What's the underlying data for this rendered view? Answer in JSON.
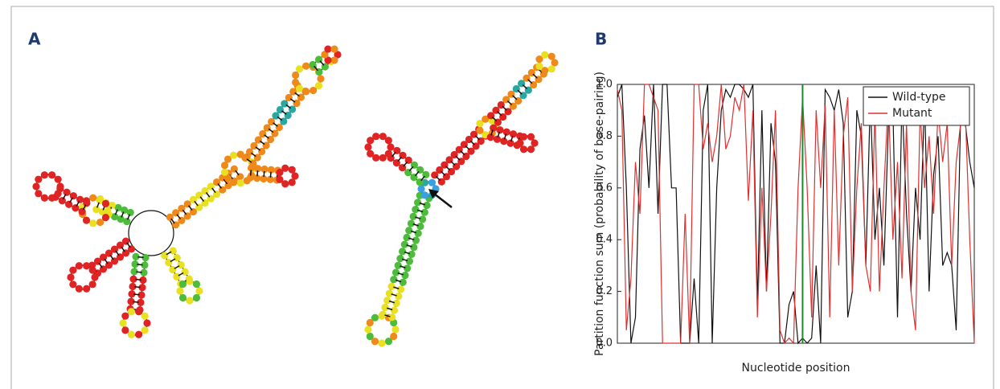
{
  "panels": {
    "a": "A",
    "b": "B"
  },
  "chart_data": {
    "type": "line",
    "ylabel": "Partition function sum (probability of base-pairing)",
    "xlabel": "Nucleotide position",
    "x": [
      1,
      2,
      3,
      4,
      5,
      6,
      7,
      8,
      9,
      10,
      11,
      12,
      13,
      14,
      15,
      16,
      17,
      18,
      19,
      20,
      21,
      22,
      23,
      24,
      25,
      26,
      27,
      28,
      29,
      30,
      31,
      32,
      33,
      34,
      35,
      36,
      37,
      38,
      39,
      40,
      41,
      42,
      43,
      44,
      45,
      46,
      47,
      48,
      49,
      50,
      51,
      52,
      53,
      54,
      55,
      56,
      57,
      58,
      59,
      60,
      61,
      62,
      63,
      64,
      65,
      66,
      67,
      68,
      69,
      70,
      71,
      72,
      73,
      74,
      75,
      76,
      77,
      78,
      79,
      80
    ],
    "xlim": [
      1,
      80
    ],
    "ylim": [
      0,
      1
    ],
    "yticks": [
      {
        "value": 0,
        "label": "0.0"
      },
      0.2,
      0.4,
      0.6,
      0.8,
      {
        "value": 1,
        "label": "1.0"
      }
    ],
    "legend": "upper right",
    "vline": {
      "x": 42,
      "color": "#1a8a2a"
    },
    "series": [
      {
        "name": "Wild-type",
        "color": "#111111",
        "values": [
          0.95,
          1,
          0.6,
          0,
          0.1,
          0.75,
          0.88,
          0.6,
          1,
          0.5,
          1,
          1,
          0.6,
          0.6,
          0,
          0,
          0,
          0.25,
          0,
          0.9,
          1,
          0,
          0.6,
          0.9,
          0.98,
          0.95,
          1,
          1,
          0.98,
          0.95,
          1,
          0.15,
          0.9,
          0.2,
          0.85,
          0.7,
          0,
          0,
          0.15,
          0.2,
          0,
          0.02,
          0,
          0.02,
          0.3,
          0,
          0.98,
          0.95,
          0.9,
          0.98,
          0.85,
          0.1,
          0.2,
          0.9,
          0.8,
          0.3,
          0.95,
          0.4,
          0.6,
          0.3,
          0.85,
          0.9,
          0.1,
          0.95,
          0.5,
          0.2,
          0.6,
          0.4,
          0.95,
          0.2,
          0.65,
          0.8,
          0.3,
          0.35,
          0.3,
          0.05,
          0.9,
          0.85,
          0.7,
          0.6
        ]
      },
      {
        "name": "Mutant",
        "color": "#e03030",
        "values": [
          0.98,
          0.9,
          0.05,
          0.25,
          0.7,
          0.5,
          1,
          1,
          0.95,
          0.9,
          0,
          0,
          0,
          0,
          0,
          0.5,
          0,
          1,
          1,
          0.75,
          0.85,
          0.7,
          0.8,
          1,
          0.75,
          0.8,
          0.95,
          0.9,
          1,
          0.55,
          0.9,
          0.1,
          0.6,
          0.2,
          0.5,
          0.9,
          0.05,
          0,
          0.02,
          0,
          0.6,
          0.95,
          0.6,
          0.1,
          0.9,
          0.6,
          0.92,
          0.1,
          0.9,
          0.3,
          0.8,
          0.95,
          0.2,
          0.6,
          0.85,
          0.3,
          0.2,
          0.9,
          0.2,
          0.6,
          0.95,
          0.4,
          0.7,
          0.25,
          0.85,
          0.2,
          0.05,
          0.9,
          0.6,
          0.8,
          0.5,
          0.9,
          0.7,
          0.85,
          0.3,
          0.7,
          0.85,
          0.9,
          0.4,
          0
        ]
      }
    ]
  }
}
